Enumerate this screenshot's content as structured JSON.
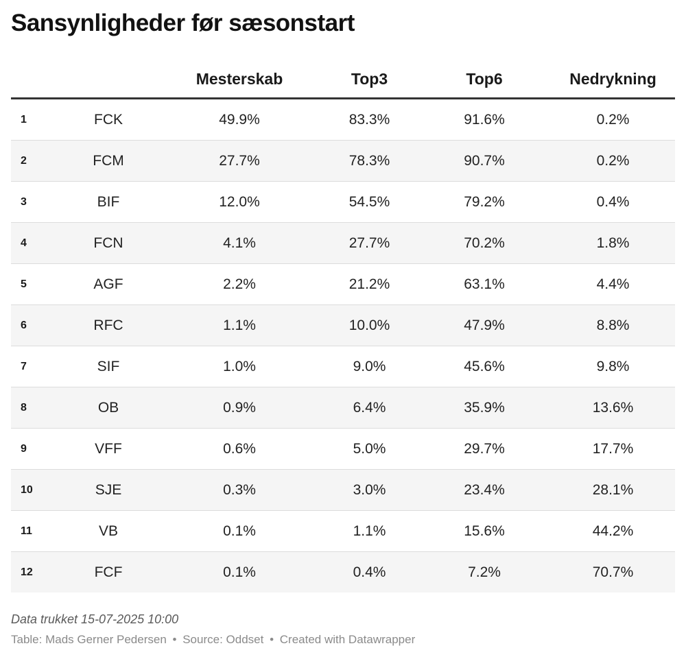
{
  "chart_data": {
    "type": "table",
    "title": "Sansynligheder før sæsonstart",
    "columns": [
      "",
      "",
      "Mesterskab",
      "Top3",
      "Top6",
      "Nedrykning"
    ],
    "rows": [
      {
        "rank": "1",
        "team": "FCK",
        "mesterskab": "49.9%",
        "top3": "83.3%",
        "top6": "91.6%",
        "nedrykning": "0.2%"
      },
      {
        "rank": "2",
        "team": "FCM",
        "mesterskab": "27.7%",
        "top3": "78.3%",
        "top6": "90.7%",
        "nedrykning": "0.2%"
      },
      {
        "rank": "3",
        "team": "BIF",
        "mesterskab": "12.0%",
        "top3": "54.5%",
        "top6": "79.2%",
        "nedrykning": "0.4%"
      },
      {
        "rank": "4",
        "team": "FCN",
        "mesterskab": "4.1%",
        "top3": "27.7%",
        "top6": "70.2%",
        "nedrykning": "1.8%"
      },
      {
        "rank": "5",
        "team": "AGF",
        "mesterskab": "2.2%",
        "top3": "21.2%",
        "top6": "63.1%",
        "nedrykning": "4.4%"
      },
      {
        "rank": "6",
        "team": "RFC",
        "mesterskab": "1.1%",
        "top3": "10.0%",
        "top6": "47.9%",
        "nedrykning": "8.8%"
      },
      {
        "rank": "7",
        "team": "SIF",
        "mesterskab": "1.0%",
        "top3": "9.0%",
        "top6": "45.6%",
        "nedrykning": "9.8%"
      },
      {
        "rank": "8",
        "team": "OB",
        "mesterskab": "0.9%",
        "top3": "6.4%",
        "top6": "35.9%",
        "nedrykning": "13.6%"
      },
      {
        "rank": "9",
        "team": "VFF",
        "mesterskab": "0.6%",
        "top3": "5.0%",
        "top6": "29.7%",
        "nedrykning": "17.7%"
      },
      {
        "rank": "10",
        "team": "SJE",
        "mesterskab": "0.3%",
        "top3": "3.0%",
        "top6": "23.4%",
        "nedrykning": "28.1%"
      },
      {
        "rank": "11",
        "team": "VB",
        "mesterskab": "0.1%",
        "top3": "1.1%",
        "top6": "15.6%",
        "nedrykning": "44.2%"
      },
      {
        "rank": "12",
        "team": "FCF",
        "mesterskab": "0.1%",
        "top3": "0.4%",
        "top6": "7.2%",
        "nedrykning": "70.7%"
      }
    ],
    "notes": "Data trukket 15-07-2025 10:00",
    "footer": {
      "table_credit": "Table: Mads Gerner Pedersen",
      "source": "Source: Oddset",
      "created": "Created with Datawrapper",
      "separator": "•"
    },
    "colors": {
      "header_rule": "#333333",
      "stripe": "#f5f5f5",
      "row_divider": "#dcdcdc"
    }
  }
}
